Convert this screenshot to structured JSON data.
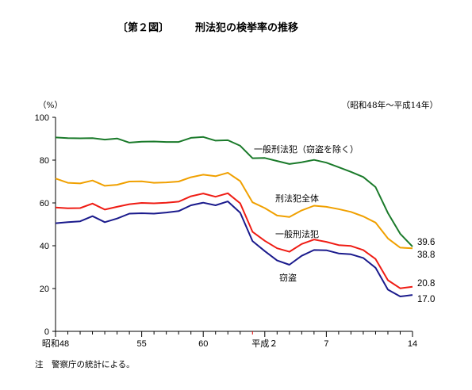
{
  "chart_data": {
    "type": "line",
    "figure_number": "〔第２図〕",
    "title": "刑法犯の検挙率の推移",
    "ylabel": "（%）",
    "period": "（昭和48年～平成14年）",
    "note": "注　警察庁の統計による。",
    "ylim": [
      0,
      100
    ],
    "yticks": [
      0,
      20,
      40,
      60,
      80,
      100
    ],
    "xlim": [
      1973,
      2002
    ],
    "xticks": [
      {
        "x": 1973,
        "label": "昭和48"
      },
      {
        "x": 1980,
        "label": "55"
      },
      {
        "x": 1985,
        "label": "60"
      },
      {
        "x": 1990,
        "label": "平成２"
      },
      {
        "x": 1995,
        "label": "7"
      },
      {
        "x": 2002,
        "label": "14"
      }
    ],
    "x": [
      1973,
      1974,
      1975,
      1976,
      1977,
      1978,
      1979,
      1980,
      1981,
      1982,
      1983,
      1984,
      1985,
      1986,
      1987,
      1988,
      1989,
      1990,
      1991,
      1992,
      1993,
      1994,
      1995,
      1996,
      1997,
      1998,
      1999,
      2000,
      2001,
      2002
    ],
    "series": [
      {
        "name": "一般刑法犯（窃盗を除く）",
        "color": "#1a7a2a",
        "end_label": "39.6",
        "values": [
          90.6,
          90.3,
          90.2,
          90.3,
          89.6,
          90.1,
          88.2,
          88.6,
          88.7,
          88.5,
          88.5,
          90.4,
          90.8,
          89.1,
          89.3,
          86.7,
          80.9,
          81.0,
          79.6,
          78.2,
          79.0,
          80.1,
          78.8,
          76.7,
          74.5,
          72.1,
          67.4,
          55.3,
          45.6,
          39.6
        ]
      },
      {
        "name": "刑法犯全体",
        "color": "#f0a000",
        "end_label": "38.8",
        "values": [
          71.4,
          69.4,
          69.1,
          70.5,
          68.0,
          68.5,
          70.0,
          70.1,
          69.4,
          69.6,
          70.0,
          72.0,
          73.2,
          72.5,
          74.1,
          70.2,
          60.3,
          57.6,
          54.1,
          53.4,
          56.5,
          58.7,
          58.2,
          57.1,
          55.8,
          53.7,
          50.8,
          43.4,
          39.1,
          38.8
        ]
      },
      {
        "name": "一般刑法犯",
        "color": "#ef1c14",
        "end_label": "20.8",
        "values": [
          57.9,
          57.5,
          57.6,
          59.7,
          56.9,
          58.2,
          59.4,
          60.0,
          59.8,
          60.1,
          60.6,
          63.1,
          64.4,
          62.9,
          64.5,
          59.8,
          46.5,
          42.3,
          38.8,
          37.2,
          40.8,
          42.9,
          41.8,
          40.3,
          39.9,
          38.0,
          33.8,
          23.9,
          20.1,
          20.8
        ]
      },
      {
        "name": "窃盗",
        "color": "#1a1a8c",
        "end_label": "17.0",
        "values": [
          50.5,
          51.0,
          51.4,
          53.8,
          51.0,
          52.7,
          55.0,
          55.2,
          55.0,
          55.5,
          56.2,
          58.9,
          60.1,
          58.9,
          60.7,
          55.4,
          42.2,
          37.5,
          33.1,
          31.1,
          35.3,
          38.0,
          37.9,
          36.4,
          36.0,
          34.3,
          29.7,
          19.5,
          16.3,
          17.0
        ]
      }
    ]
  }
}
